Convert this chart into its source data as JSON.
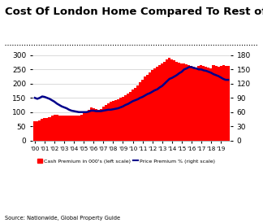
{
  "title": "Cost Of London Home Compared To Rest of UK",
  "source": "Source: Nationwide, Global Property Guide",
  "years": [
    "'00",
    "'01",
    "'02",
    "'03",
    "'04",
    "'05",
    "'06",
    "'07",
    "'08",
    "'09",
    "'10",
    "'11",
    "'12",
    "'13",
    "'14",
    "'15",
    "'16",
    "'17",
    "'18",
    "'19"
  ],
  "cash_premium": [
    68,
    68,
    70,
    75,
    78,
    80,
    82,
    88,
    92,
    90,
    88,
    87,
    87,
    87,
    87,
    87,
    88,
    88,
    88,
    90,
    95,
    100,
    108,
    115,
    113,
    110,
    108,
    112,
    120,
    125,
    130,
    135,
    138,
    142,
    145,
    150,
    155,
    160,
    165,
    170,
    178,
    185,
    195,
    205,
    215,
    225,
    232,
    240,
    248,
    255,
    260,
    265,
    270,
    277,
    285,
    290,
    285,
    282,
    278,
    275,
    272,
    270,
    268,
    265,
    262,
    260,
    258,
    262,
    265,
    263,
    260,
    258,
    255,
    265,
    263,
    260,
    262,
    265,
    263,
    262
  ],
  "price_premium": [
    90,
    88,
    90,
    93,
    92,
    90,
    88,
    85,
    82,
    78,
    75,
    72,
    70,
    68,
    65,
    63,
    62,
    61,
    60,
    60,
    60,
    60,
    61,
    63,
    63,
    62,
    62,
    62,
    63,
    64,
    65,
    65,
    66,
    67,
    68,
    70,
    72,
    75,
    77,
    80,
    83,
    85,
    87,
    90,
    92,
    95,
    98,
    100,
    103,
    106,
    108,
    112,
    115,
    120,
    125,
    130,
    132,
    135,
    138,
    142,
    145,
    150,
    152,
    155,
    155,
    153,
    152,
    150,
    150,
    148,
    147,
    145,
    143,
    140,
    138,
    136,
    133,
    130,
    128,
    128
  ],
  "bar_color": "#ff0000",
  "line_color": "#00008b",
  "ylim_left": [
    0,
    300
  ],
  "ylim_right": [
    0,
    180
  ],
  "yticks_left": [
    0,
    50,
    100,
    150,
    200,
    250,
    300
  ],
  "yticks_right": [
    0,
    30,
    60,
    90,
    120,
    150,
    180
  ],
  "background_color": "#ffffff",
  "grid_color": "#cccccc",
  "title_fontsize": 9.5,
  "legend_label_bar": "Cash Premium in 000's (left scale)",
  "legend_label_line": "Price Premium % (right scale)"
}
